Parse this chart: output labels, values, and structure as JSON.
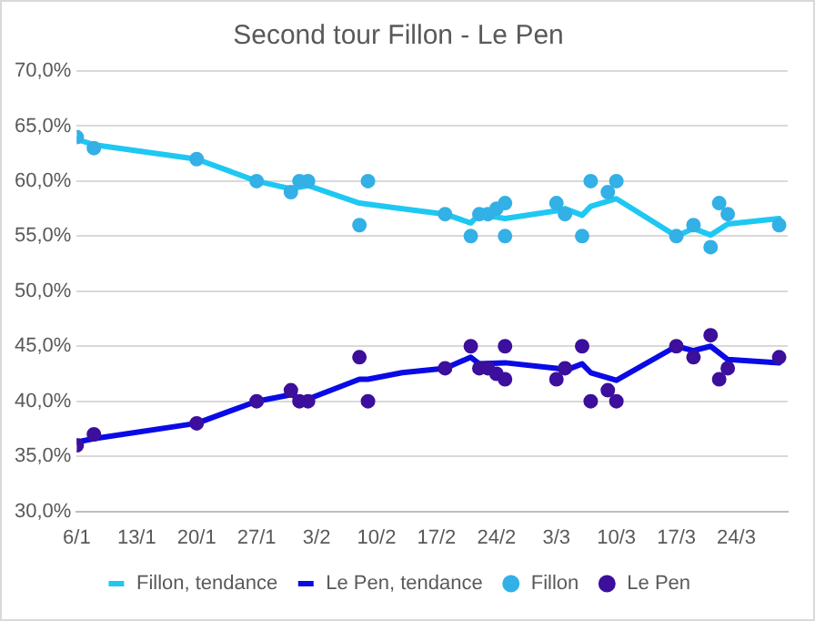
{
  "chart_data": {
    "type": "line",
    "title": "Second tour Fillon - Le Pen",
    "legend": "bottom",
    "grid": "y",
    "xlim": [
      "--01-06",
      "--03-30"
    ],
    "xticks": [
      {
        "value": "--01-06",
        "label": "6/1"
      },
      {
        "value": "--01-13",
        "label": "13/1"
      },
      {
        "value": "--01-20",
        "label": "20/1"
      },
      {
        "value": "--01-27",
        "label": "27/1"
      },
      {
        "value": "--02-03",
        "label": "3/2"
      },
      {
        "value": "--02-10",
        "label": "10/2"
      },
      {
        "value": "--02-17",
        "label": "17/2"
      },
      {
        "value": "--02-24",
        "label": "24/2"
      },
      {
        "value": "--03-03",
        "label": "3/3"
      },
      {
        "value": "--03-10",
        "label": "10/3"
      },
      {
        "value": "--03-17",
        "label": "17/3"
      },
      {
        "value": "--03-24",
        "label": "24/3"
      }
    ],
    "ylim": [
      30,
      70
    ],
    "yticks": [
      {
        "value": 30,
        "label": "30,0%"
      },
      {
        "value": 35,
        "label": "35,0%"
      },
      {
        "value": 40,
        "label": "40,0%"
      },
      {
        "value": 45,
        "label": "45,0%"
      },
      {
        "value": 50,
        "label": "50,0%"
      },
      {
        "value": 55,
        "label": "55,0%"
      },
      {
        "value": 60,
        "label": "60,0%"
      },
      {
        "value": 65,
        "label": "65,0%"
      },
      {
        "value": 70,
        "label": "70,0%"
      }
    ],
    "series": [
      {
        "name": "Fillon, tendance",
        "marker": "none",
        "color": "#1ec8f2",
        "x": [
          "--01-06",
          "--01-08",
          "--01-20",
          "--01-27",
          "--01-31",
          "--02-02",
          "--02-08",
          "--02-12",
          "--02-18",
          "--02-21",
          "--02-22",
          "--02-25",
          "--03-03",
          "--03-04",
          "--03-06",
          "--03-07",
          "--03-10",
          "--03-17",
          "--03-19",
          "--03-21",
          "--03-23",
          "--03-29"
        ],
        "values": [
          63.8,
          63.3,
          62,
          60,
          59.3,
          59.6,
          58,
          57.6,
          57,
          56.2,
          57,
          56.6,
          57.3,
          57.5,
          56.9,
          57.7,
          58.4,
          55,
          55.7,
          55.1,
          56.1,
          56.6
        ]
      },
      {
        "name": "Le Pen, tendance",
        "marker": "none",
        "color": "#0a0ae6",
        "x": [
          "--01-06",
          "--01-08",
          "--01-20",
          "--01-27",
          "--01-31",
          "--02-01",
          "--02-02",
          "--02-08",
          "--02-09",
          "--02-13",
          "--02-18",
          "--02-21",
          "--02-22",
          "--02-25",
          "--03-03",
          "--03-04",
          "--03-06",
          "--03-07",
          "--03-10",
          "--03-17",
          "--03-19",
          "--03-21",
          "--03-23",
          "--03-29"
        ],
        "values": [
          36.3,
          36.6,
          38,
          40,
          40.6,
          40.3,
          40.2,
          42,
          42,
          42.6,
          43,
          44,
          43.4,
          43.5,
          43,
          42.8,
          43.4,
          42.6,
          41.9,
          45,
          44.6,
          45,
          43.8,
          43.5
        ]
      },
      {
        "name": "Fillon",
        "type": "scatter",
        "marker": "circle",
        "color": "#33b0e6",
        "x": [
          "--01-06",
          "--01-08",
          "--01-20",
          "--01-27",
          "--01-31",
          "--02-01",
          "--02-02",
          "--02-08",
          "--02-09",
          "--02-18",
          "--02-21",
          "--02-22",
          "--02-23",
          "--02-24",
          "--02-25",
          "--02-25",
          "--03-03",
          "--03-04",
          "--03-06",
          "--03-07",
          "--03-09",
          "--03-10",
          "--03-17",
          "--03-19",
          "--03-21",
          "--03-22",
          "--03-23",
          "--03-29"
        ],
        "values": [
          64,
          63,
          62,
          60,
          59,
          60,
          60,
          56,
          60,
          57,
          55,
          57,
          57,
          57.5,
          58,
          55,
          58,
          57,
          55,
          60,
          59,
          60,
          55,
          56,
          54,
          58,
          57,
          56
        ]
      },
      {
        "name": "Le Pen",
        "type": "scatter",
        "marker": "circle",
        "color": "#3c0f9c",
        "x": [
          "--01-06",
          "--01-08",
          "--01-20",
          "--01-27",
          "--01-31",
          "--02-01",
          "--02-02",
          "--02-08",
          "--02-09",
          "--02-18",
          "--02-21",
          "--02-22",
          "--02-23",
          "--02-24",
          "--02-25",
          "--02-25",
          "--03-03",
          "--03-04",
          "--03-06",
          "--03-07",
          "--03-09",
          "--03-10",
          "--03-17",
          "--03-19",
          "--03-21",
          "--03-22",
          "--03-23",
          "--03-29"
        ],
        "values": [
          36,
          37,
          38,
          40,
          41,
          40,
          40,
          44,
          40,
          43,
          45,
          43,
          43,
          42.5,
          42,
          45,
          42,
          43,
          45,
          40,
          41,
          40,
          45,
          44,
          46,
          42,
          43,
          44
        ]
      }
    ]
  }
}
